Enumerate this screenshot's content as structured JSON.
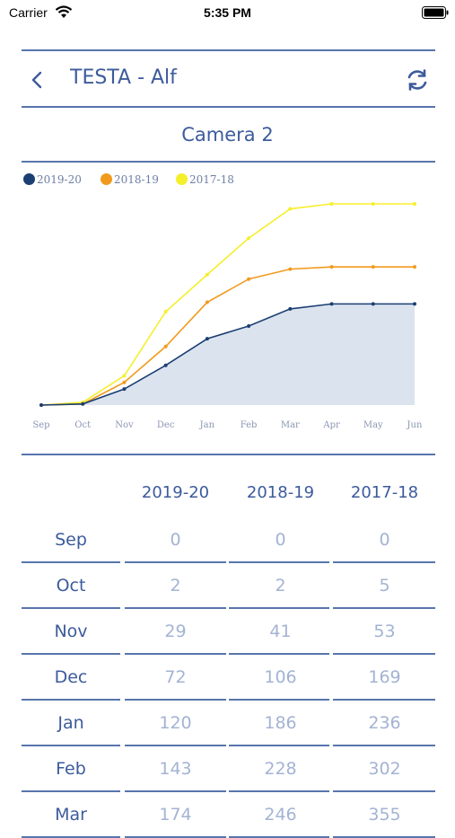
{
  "status_bar": {
    "carrier": "Carrier",
    "time": "5:35 PM"
  },
  "header": {
    "title": "TESTA - Alf",
    "back_icon": "chevron-left-icon",
    "refresh_icon": "refresh-icon"
  },
  "subtitle": "Camera 2",
  "colors": {
    "accent": "#3c5b9c",
    "series_2019": "#1b3f73",
    "series_2018": "#f29a1d",
    "series_2017": "#f5ef2c",
    "fill_2019": "#dbe3ee"
  },
  "chart_data": {
    "type": "line",
    "categories": [
      "Sep",
      "Oct",
      "Nov",
      "Dec",
      "Jan",
      "Feb",
      "Mar",
      "Apr",
      "May",
      "Jun"
    ],
    "series": [
      {
        "name": "2019-20",
        "values": [
          0,
          2,
          29,
          72,
          120,
          143,
          174,
          183,
          183,
          183
        ],
        "color": "#1b3f73",
        "filled": true
      },
      {
        "name": "2018-19",
        "values": [
          0,
          2,
          41,
          106,
          186,
          228,
          246,
          250,
          250,
          250
        ],
        "color": "#f29a1d"
      },
      {
        "name": "2017-18",
        "values": [
          0,
          5,
          53,
          169,
          236,
          302,
          355,
          364,
          364,
          364
        ],
        "color": "#f5ef2c"
      }
    ],
    "legend_position": "top-left",
    "grid": false
  },
  "table": {
    "headers": [
      "2019-20",
      "2018-19",
      "2017-18"
    ],
    "rows": [
      {
        "month": "Sep",
        "values": [
          "0",
          "0",
          "0"
        ]
      },
      {
        "month": "Oct",
        "values": [
          "2",
          "2",
          "5"
        ]
      },
      {
        "month": "Nov",
        "values": [
          "29",
          "41",
          "53"
        ]
      },
      {
        "month": "Dec",
        "values": [
          "72",
          "106",
          "169"
        ]
      },
      {
        "month": "Jan",
        "values": [
          "120",
          "186",
          "236"
        ]
      },
      {
        "month": "Feb",
        "values": [
          "143",
          "228",
          "302"
        ]
      },
      {
        "month": "Mar",
        "values": [
          "174",
          "246",
          "355"
        ]
      }
    ]
  }
}
